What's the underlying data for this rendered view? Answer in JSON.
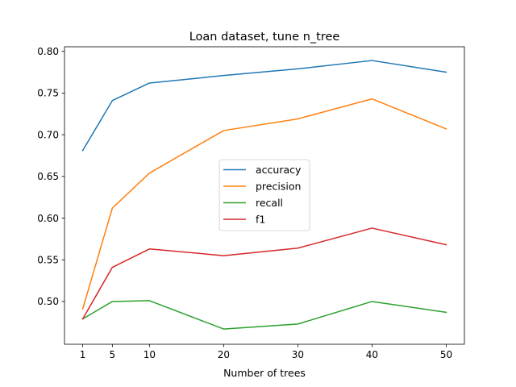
{
  "chart_data": {
    "type": "line",
    "title": "Loan dataset, tune n_tree",
    "xlabel": "Number of trees",
    "ylabel": "",
    "x": [
      1,
      5,
      10,
      20,
      30,
      40,
      50
    ],
    "xticks": [
      1,
      5,
      10,
      20,
      30,
      40,
      50
    ],
    "yticks": [
      0.5,
      0.55,
      0.6,
      0.65,
      0.7,
      0.75,
      0.8
    ],
    "ytick_labels": [
      "0.50",
      "0.55",
      "0.60",
      "0.65",
      "0.70",
      "0.75",
      "0.80"
    ],
    "xlim": [
      -1.45,
      52.45
    ],
    "ylim": [
      0.4487,
      0.8055
    ],
    "grid": false,
    "legend_position": "center",
    "series": [
      {
        "name": "accuracy",
        "color": "#1f77b4",
        "values": [
          0.681,
          0.741,
          0.762,
          0.771,
          0.779,
          0.789,
          0.775
        ]
      },
      {
        "name": "precision",
        "color": "#ff7f0e",
        "values": [
          0.491,
          0.612,
          0.654,
          0.705,
          0.719,
          0.743,
          0.707
        ]
      },
      {
        "name": "recall",
        "color": "#2ca02c",
        "values": [
          0.479,
          0.5,
          0.501,
          0.467,
          0.473,
          0.5,
          0.487
        ]
      },
      {
        "name": "f1",
        "color": "#d62728",
        "values": [
          0.479,
          0.541,
          0.563,
          0.555,
          0.564,
          0.588,
          0.568
        ]
      }
    ]
  }
}
